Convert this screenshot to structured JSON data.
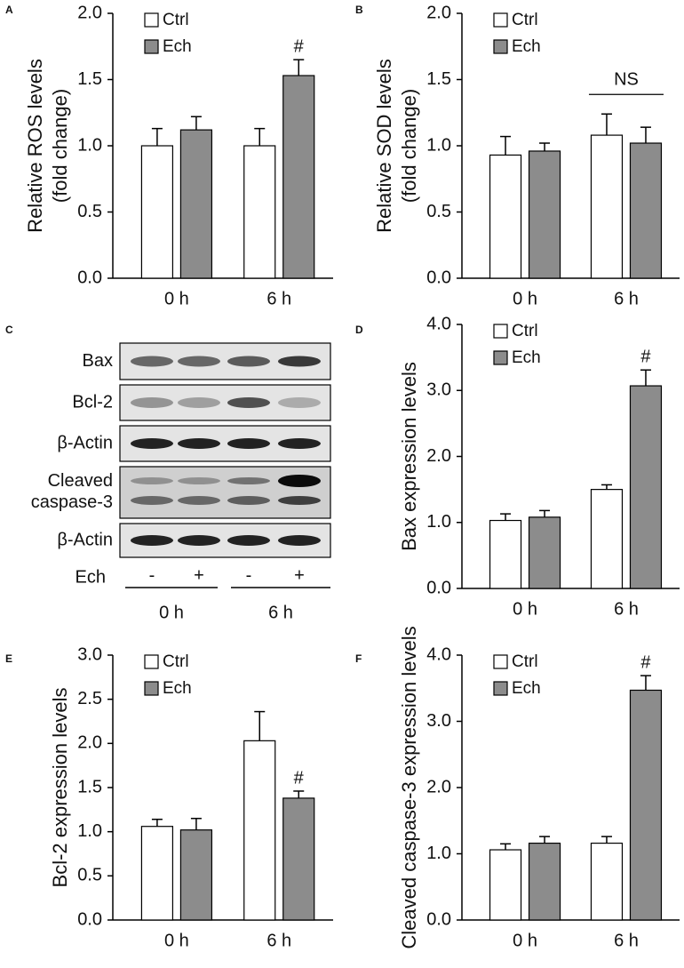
{
  "chart_data": [
    {
      "type": "bar",
      "panel": "A",
      "ylabel": [
        "Relative ROS levels",
        "(fold change)"
      ],
      "categories": [
        "0 h",
        "6 h"
      ],
      "series": [
        {
          "name": "Ctrl",
          "color": "#ffffff",
          "values": [
            1.0,
            1.0
          ],
          "errors": [
            0.13,
            0.13
          ]
        },
        {
          "name": "Ech",
          "color": "#8c8c8c",
          "values": [
            1.12,
            1.53
          ],
          "errors": [
            0.1,
            0.12
          ]
        }
      ],
      "ylim": [
        0,
        2
      ],
      "yticks": [
        {
          "value": 0,
          "label": "0.0"
        },
        {
          "value": 0.5,
          "label": "0.5"
        },
        {
          "value": 1,
          "label": "1.0"
        },
        {
          "value": 1.5,
          "label": "1.5"
        },
        {
          "value": 2,
          "label": "2.0"
        }
      ],
      "annotation": "#"
    },
    {
      "type": "bar",
      "panel": "B",
      "ylabel": [
        "Relative SOD levels",
        "(fold change)"
      ],
      "categories": [
        "0 h",
        "6 h"
      ],
      "series": [
        {
          "name": "Ctrl",
          "color": "#ffffff",
          "values": [
            0.93,
            1.08
          ],
          "errors": [
            0.14,
            0.16
          ]
        },
        {
          "name": "Ech",
          "color": "#8c8c8c",
          "values": [
            0.96,
            1.02
          ],
          "errors": [
            0.06,
            0.12
          ]
        }
      ],
      "ylim": [
        0,
        2
      ],
      "yticks": [
        {
          "value": 0,
          "label": "0.0"
        },
        {
          "value": 0.5,
          "label": "0.5"
        },
        {
          "value": 1,
          "label": "1.0"
        },
        {
          "value": 1.5,
          "label": "1.5"
        },
        {
          "value": 2,
          "label": "2.0"
        }
      ],
      "annotation": "NS"
    },
    {
      "type": "blot",
      "panel": "C",
      "rows": [
        "Bax",
        "Bcl-2",
        "β-Actin",
        "Cleaved caspase-3",
        "β-Actin"
      ],
      "treatment": "Ech",
      "lanes": [
        "-",
        "+",
        "-",
        "+"
      ],
      "groups": [
        "0 h",
        "6 h"
      ]
    },
    {
      "type": "bar",
      "panel": "D",
      "ylabel": [
        "Bax expression levels"
      ],
      "categories": [
        "0 h",
        "6 h"
      ],
      "series": [
        {
          "name": "Ctrl",
          "color": "#ffffff",
          "values": [
            1.03,
            1.5
          ],
          "errors": [
            0.1,
            0.07
          ]
        },
        {
          "name": "Ech",
          "color": "#8c8c8c",
          "values": [
            1.08,
            3.07
          ],
          "errors": [
            0.1,
            0.24
          ]
        }
      ],
      "ylim": [
        0,
        4
      ],
      "yticks": [
        {
          "value": 0,
          "label": "0.0"
        },
        {
          "value": 1,
          "label": "1.0"
        },
        {
          "value": 2,
          "label": "2.0"
        },
        {
          "value": 3,
          "label": "3.0"
        },
        {
          "value": 4,
          "label": "4.0"
        }
      ],
      "annotation": "#"
    },
    {
      "type": "bar",
      "panel": "E",
      "ylabel": [
        "Bcl-2 expression levels"
      ],
      "categories": [
        "0 h",
        "6 h"
      ],
      "series": [
        {
          "name": "Ctrl",
          "color": "#ffffff",
          "values": [
            1.06,
            2.03
          ],
          "errors": [
            0.08,
            0.33
          ]
        },
        {
          "name": "Ech",
          "color": "#8c8c8c",
          "values": [
            1.02,
            1.38
          ],
          "errors": [
            0.13,
            0.08
          ]
        }
      ],
      "ylim": [
        0,
        3
      ],
      "yticks": [
        {
          "value": 0,
          "label": "0.0"
        },
        {
          "value": 0.5,
          "label": "0.5"
        },
        {
          "value": 1,
          "label": "1.0"
        },
        {
          "value": 1.5,
          "label": "1.5"
        },
        {
          "value": 2,
          "label": "2.0"
        },
        {
          "value": 2.5,
          "label": "2.5"
        },
        {
          "value": 3,
          "label": "3.0"
        }
      ],
      "annotation": "#"
    },
    {
      "type": "bar",
      "panel": "F",
      "ylabel": [
        "Cleaved caspase-3 expression levels"
      ],
      "categories": [
        "0 h",
        "6 h"
      ],
      "series": [
        {
          "name": "Ctrl",
          "color": "#ffffff",
          "values": [
            1.06,
            1.16
          ],
          "errors": [
            0.09,
            0.1
          ]
        },
        {
          "name": "Ech",
          "color": "#8c8c8c",
          "values": [
            1.16,
            3.47
          ],
          "errors": [
            0.1,
            0.22
          ]
        }
      ],
      "ylim": [
        0,
        4
      ],
      "yticks": [
        {
          "value": 0,
          "label": "0.0"
        },
        {
          "value": 1,
          "label": "1.0"
        },
        {
          "value": 2,
          "label": "2.0"
        },
        {
          "value": 3,
          "label": "3.0"
        },
        {
          "value": 4,
          "label": "4.0"
        }
      ],
      "annotation": "#"
    }
  ]
}
